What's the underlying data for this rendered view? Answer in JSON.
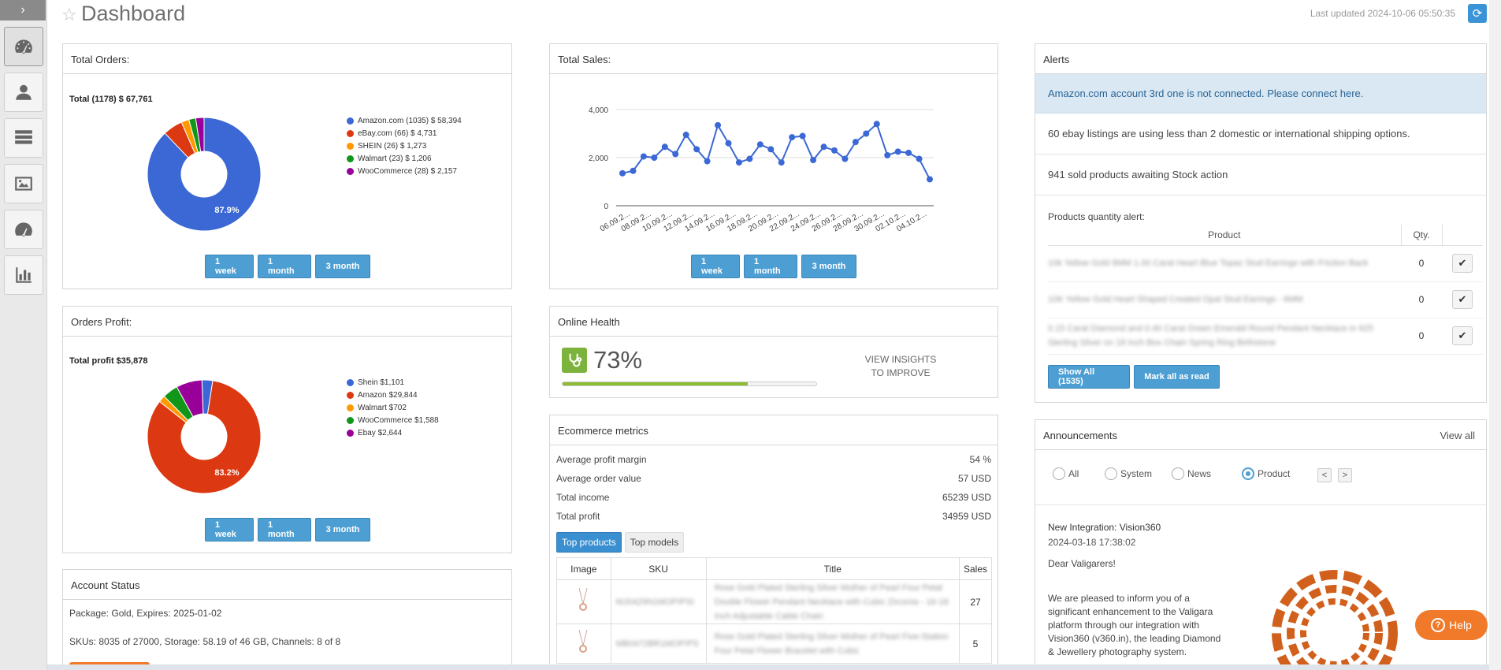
{
  "sidebar": {
    "toggle": "›",
    "items": [
      "dashboard",
      "users",
      "listings",
      "images",
      "speed",
      "reports"
    ]
  },
  "header": {
    "title": "Dashboard",
    "last_updated": "Last updated 2024-10-06 05:50:35",
    "refresh": "⟳"
  },
  "total_orders": {
    "title": "Total Orders:",
    "total": "Total (1178) $ 67,761",
    "center_label": "87.9%",
    "legend": [
      {
        "label": "Amazon.com (1035) $ 58,394",
        "value": 1035,
        "color": "#3b68d4"
      },
      {
        "label": "eBay.com (66) $ 4,731",
        "value": 66,
        "color": "#dc3912"
      },
      {
        "label": "SHEIN (26) $ 1,273",
        "value": 26,
        "color": "#ff9900"
      },
      {
        "label": "Walmart (23) $ 1,206",
        "value": 23,
        "color": "#109618"
      },
      {
        "label": "WooCommerce (28) $ 2,157",
        "value": 28,
        "color": "#990099"
      }
    ],
    "buttons": [
      "1 week",
      "1 month",
      "3 month"
    ]
  },
  "orders_profit": {
    "title": "Orders Profit:",
    "total": "Total profit $35,878",
    "center_label": "83.2%",
    "legend": [
      {
        "label": "Shein $1,101",
        "value": 1101,
        "color": "#3b68d4"
      },
      {
        "label": "Amazon $29,844",
        "value": 29844,
        "color": "#dc3912"
      },
      {
        "label": "Walmart $702",
        "value": 702,
        "color": "#ff9900"
      },
      {
        "label": "WooCommerce $1,588",
        "value": 1588,
        "color": "#109618"
      },
      {
        "label": "Ebay $2,644",
        "value": 2644,
        "color": "#990099"
      }
    ],
    "buttons": [
      "1 week",
      "1 month",
      "3 month"
    ]
  },
  "account_status": {
    "title": "Account Status",
    "package": "Package: Gold, Expires: 2025-01-02",
    "usage": "SKUs: 8035 of 27000, Storage: 58.19 of 46 GB, Channels: 8 of 8"
  },
  "total_sales": {
    "title": "Total Sales:",
    "buttons": [
      "1 week",
      "1 month",
      "3 month"
    ]
  },
  "chart_data": {
    "type": "line",
    "title": "",
    "xlabel": "",
    "ylabel": "",
    "ylim": [
      0,
      4000
    ],
    "yticks": [
      "0",
      "2,000",
      "4,000"
    ],
    "tick_labels": [
      "06.09.2...",
      "08.09.2...",
      "10.09.2...",
      "12.09.2...",
      "14.09.2...",
      "16.09.2...",
      "18.09.2...",
      "20.09.2...",
      "22.09.2...",
      "24.09.2...",
      "26.09.2...",
      "28.09.2...",
      "30.09.2...",
      "02.10.2...",
      "04.10.2..."
    ],
    "values": [
      1350,
      1450,
      2050,
      2000,
      2450,
      2150,
      2950,
      2350,
      1850,
      3350,
      2600,
      1800,
      1950,
      2550,
      2350,
      1800,
      2850,
      2900,
      1900,
      2450,
      2300,
      1950,
      2650,
      3000,
      3400,
      2100,
      2250,
      2200,
      1950,
      1100
    ],
    "color": "#3b68d4",
    "grid": true
  },
  "online_health": {
    "title": "Online Health",
    "percent": "73%",
    "progress": 0.73,
    "insights": "VIEW INSIGHTS",
    "insights2": "TO IMPROVE"
  },
  "ecommerce": {
    "title": "Ecommerce metrics",
    "rows": [
      {
        "label": "Average profit margin",
        "value": "54 %"
      },
      {
        "label": "Average order value",
        "value": "57 USD"
      },
      {
        "label": "Total income",
        "value": "65239 USD"
      },
      {
        "label": "Total profit",
        "value": "34959 USD"
      }
    ],
    "tabs": [
      "Top products",
      "Top models"
    ],
    "columns": [
      "Image",
      "SKU",
      "Title",
      "Sales"
    ],
    "products": [
      {
        "sku": "MJ0429N1MOP/PSI",
        "title": "Rose Gold Plated Sterling Silver Mother of Pearl Four Petal Double Flower Pendant Necklace with Cubic Zirconia - 16-18 Inch Adjustable Cable Chain",
        "sales": "27"
      },
      {
        "sku": "MB0472BR1MOP/PS",
        "title": "Rose Gold Plated Sterling Silver Mother of Pearl Five-Station Four Petal Flower Bracelet with Cubic",
        "sales": "5"
      }
    ]
  },
  "alerts": {
    "title": "Alerts",
    "amazon_text": "Amazon.com account 3rd one is not connected. Please connect ",
    "amazon_link": "here.",
    "ebay": "60 ebay listings are using less than 2 domestic or international shipping options.",
    "stock": "941 sold products awaiting Stock action",
    "qty_title": "Products quantity alert:",
    "qty_columns": [
      "Product",
      "Qty."
    ],
    "qty_rows": [
      {
        "product": "10k Yellow Gold 8MM 1.00 Carat Heart Blue Topaz Stud Earrings with Friction Back",
        "qty": "0"
      },
      {
        "product": "10K Yellow Gold Heart Shaped Created Opal Stud Earrings - 6MM",
        "qty": "0"
      },
      {
        "product": "0.15 Carat Diamond and 0.40 Carat Green Emerald Round Pendant Necklace in 925 Sterling Silver on 18 Inch Box Chain Spring Ring Birthstone",
        "qty": "0"
      }
    ],
    "show_all": "Show All (1535)",
    "mark_read": "Mark all as read"
  },
  "announcements": {
    "title": "Announcements",
    "view_all": "View all",
    "filters": [
      "All",
      "System",
      "News",
      "Product"
    ],
    "selected": "Product",
    "prev": "<",
    "next": ">",
    "item_title": "New Integration: Vision360",
    "item_date": "2024-03-18 17:38:02",
    "greeting": "Dear Valigarers!",
    "body": "We are pleased to inform you of a significant enhancement to the Valigara platform through our integration with Vision360 (v360.in), the leading Diamond & Jewellery photography system."
  },
  "help": {
    "label": "Help"
  }
}
